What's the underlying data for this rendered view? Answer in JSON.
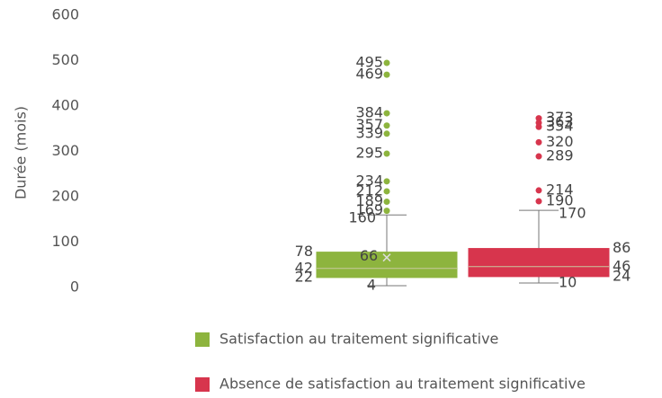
{
  "chart_data": {
    "type": "box",
    "ylabel": "Durée (mois)",
    "ylim": [
      0,
      600
    ],
    "yticks": [
      0,
      100,
      200,
      300,
      400,
      500,
      600
    ],
    "grid": false,
    "series": [
      {
        "name": "Satisfaction au traitement significative",
        "color": "#8db43e",
        "label_side": "left",
        "min": 4,
        "q1": 22,
        "median": 42,
        "q3": 78,
        "max": 160,
        "mean": 66,
        "outliers": [
          169,
          189,
          212,
          234,
          295,
          339,
          357,
          384,
          469,
          495
        ]
      },
      {
        "name": "Absence de satisfaction au traitement significative",
        "color": "#d7354d",
        "label_side": "right",
        "min": 10,
        "q1": 24,
        "median": 46,
        "q3": 86,
        "max": 170,
        "outliers": [
          190,
          214,
          289,
          320,
          354,
          363,
          373
        ]
      }
    ]
  }
}
